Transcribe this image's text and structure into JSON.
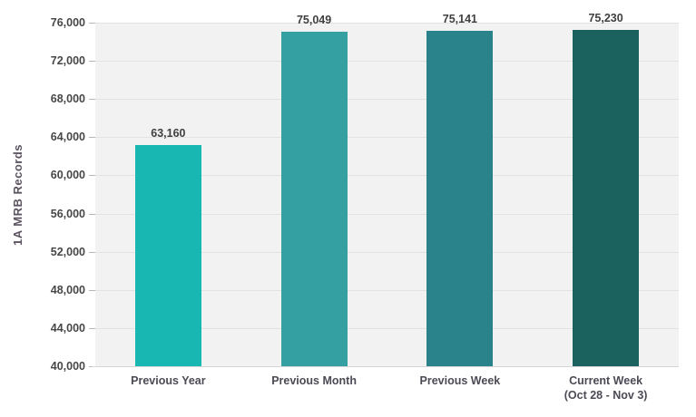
{
  "chart_data": {
    "type": "bar",
    "title": "",
    "xlabel": "",
    "ylabel": "1A MRB Records",
    "categories": [
      [
        "Previous Year"
      ],
      [
        "Previous Month"
      ],
      [
        "Previous Week"
      ],
      [
        "Current Week",
        "(Oct 28 - Nov 3)"
      ]
    ],
    "values": [
      63160,
      75049,
      75141,
      75230
    ],
    "value_labels": [
      "63,160",
      "75,049",
      "75,141",
      "75,230"
    ],
    "bar_colors": [
      "#18b7b1",
      "#35a0a2",
      "#2a838b",
      "#1b615d"
    ],
    "ylim": [
      40000,
      76000
    ],
    "ytick_step": 4000,
    "ytick_labels": [
      "40,000",
      "44,000",
      "48,000",
      "52,000",
      "56,000",
      "60,000",
      "64,000",
      "68,000",
      "72,000",
      "76,000"
    ],
    "grid": true,
    "legend": "none",
    "colors": {
      "plot_background": "#f2f2f2",
      "page_background": "#ffffff",
      "gridline": "#e2e2e2",
      "axis_line": "#d6d6d6",
      "tick_mark": "#b7b7b7",
      "tick_label": "#474747",
      "value_label": "#3f3f3f",
      "category_label": "#4c4a54",
      "ylabel": "#5b5360"
    }
  }
}
